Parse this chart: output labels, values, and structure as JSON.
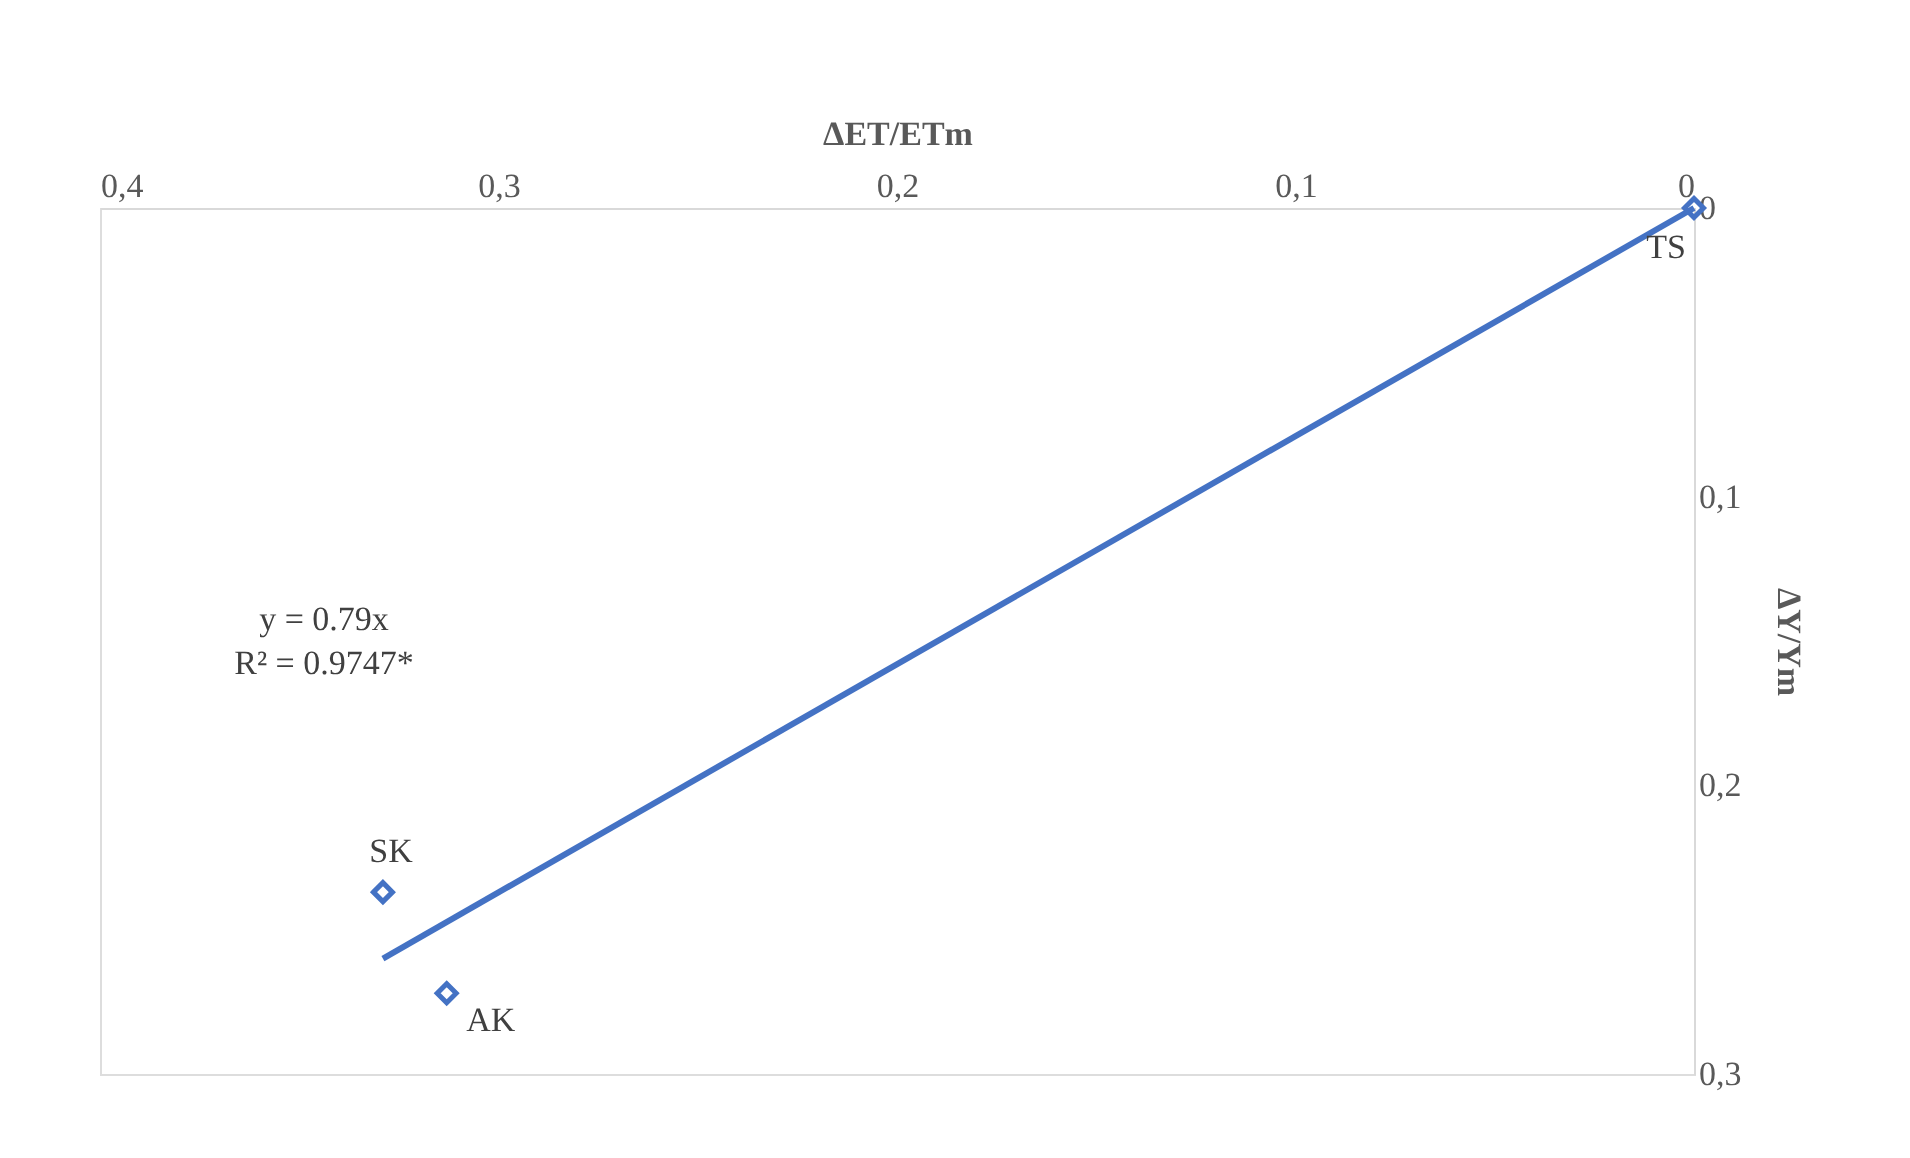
{
  "chart_data": {
    "type": "scatter",
    "xlabel": "ΔET/ETm",
    "ylabel": "ΔY/Ym",
    "xlim": [
      0.4,
      0
    ],
    "ylim": [
      0.3,
      0
    ],
    "xticks": [
      {
        "value": 0.4,
        "label": "0,4"
      },
      {
        "value": 0.3,
        "label": "0,3"
      },
      {
        "value": 0.2,
        "label": "0,2"
      },
      {
        "value": 0.1,
        "label": "0,1"
      },
      0
    ],
    "yticks": [
      0,
      {
        "value": 0.1,
        "label": "0,1"
      },
      {
        "value": 0.2,
        "label": "0,2"
      },
      {
        "value": 0.3,
        "label": "0,3"
      }
    ],
    "grid": false,
    "series": [
      {
        "marker": "diamond",
        "color": "#4472c4",
        "x": [
          0,
          0.329,
          0.313
        ],
        "values": [
          0,
          0.237,
          0.272
        ]
      },
      {
        "type": "line",
        "color": "#4472c4",
        "x": [
          0.329,
          0
        ],
        "values": [
          0.26,
          0
        ]
      }
    ],
    "annotations": [
      {
        "text": "TS",
        "x": 0,
        "y": 0
      },
      {
        "text": "SK",
        "x": 0.329,
        "y": 0.237
      },
      {
        "text": "AK",
        "x": 0.313,
        "y": 0.272
      },
      "y = 0.79x\nR² = 0.9747*"
    ]
  }
}
